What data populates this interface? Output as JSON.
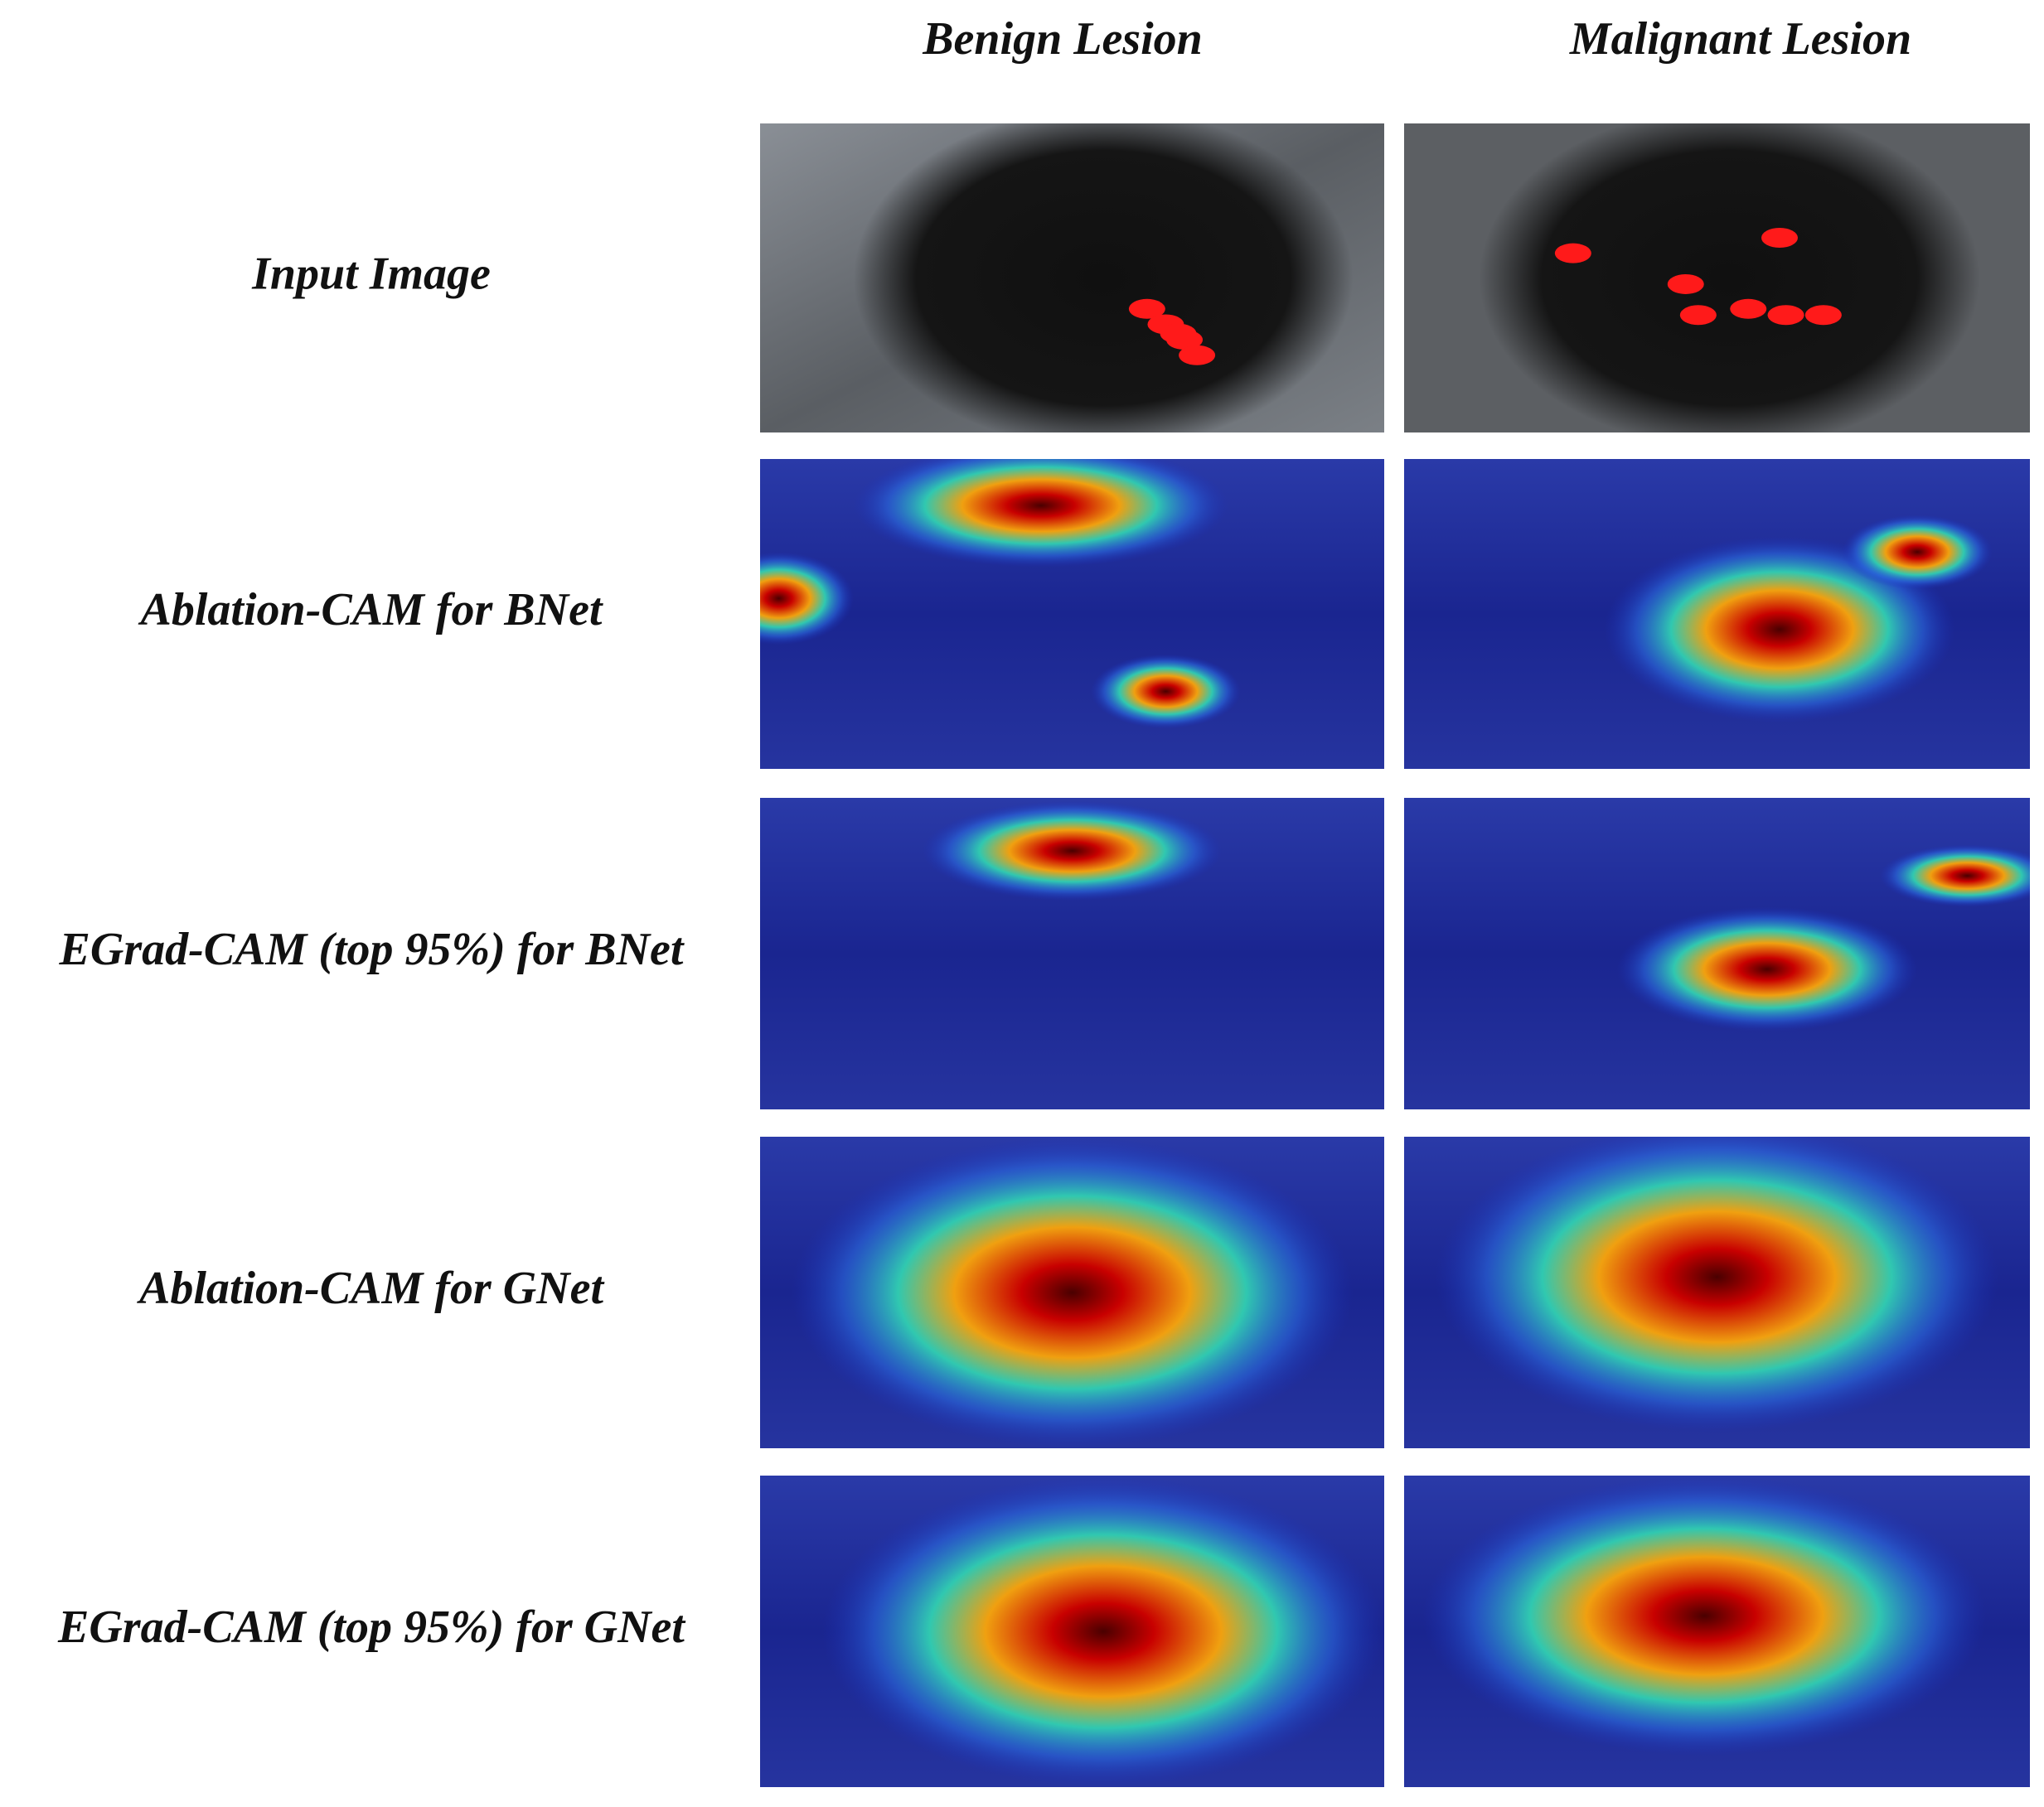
{
  "columns": [
    "Benign Lesion",
    "Malignant Lesion"
  ],
  "rows": [
    "Input Image",
    "Ablation-CAM for BNet",
    "EGrad-CAM (top 95%) for BNet",
    "Ablation-CAM for GNet",
    "EGrad-CAM (top 95%) for GNet"
  ]
}
